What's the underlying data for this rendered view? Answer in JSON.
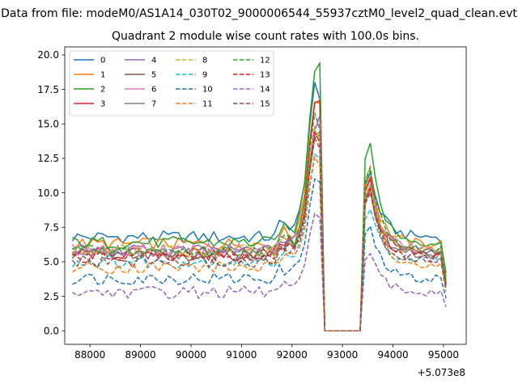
{
  "suptitle": "Data from file: modeM0/AS1A14_030T02_9000006544_55937cztM0_level2_quad_clean.evt",
  "chart_data": {
    "type": "line",
    "title": "Quadrant 2 module wise count rates with 100.0s bins.",
    "xlabel": "",
    "ylabel": "",
    "x_offset_text": "+5.073e8",
    "xlim": [
      87500,
      95450
    ],
    "ylim": [
      -0.98,
      20.58
    ],
    "xticks": [
      88000,
      89000,
      90000,
      91000,
      92000,
      93000,
      94000,
      95000
    ],
    "yticks": [
      0.0,
      2.5,
      5.0,
      7.5,
      10.0,
      12.5,
      15.0,
      17.5,
      20.0
    ],
    "xtick_labels": [
      "88000",
      "89000",
      "90000",
      "91000",
      "92000",
      "93000",
      "94000",
      "95000"
    ],
    "ytick_labels": [
      "0.0",
      "2.5",
      "5.0",
      "7.5",
      "10.0",
      "12.5",
      "15.0",
      "17.5",
      "20.0"
    ],
    "x_start": 87650,
    "x_step": 100,
    "grid": false,
    "legend": {
      "placement": "top-left",
      "columns": 4
    },
    "series": [
      {
        "name": "0",
        "color": "#1f77b4",
        "style": "solid",
        "base": 6.8,
        "peak": 18.0,
        "peak2": 16.8,
        "p2": 11.5
      },
      {
        "name": "1",
        "color": "#ff7f0e",
        "style": "solid",
        "base": 6.3,
        "peak": 16.6,
        "peak2": 16.5,
        "p2": 11.2
      },
      {
        "name": "2",
        "color": "#2ca02c",
        "style": "solid",
        "base": 6.4,
        "peak": 18.8,
        "peak2": 19.4,
        "p2": 13.6
      },
      {
        "name": "3",
        "color": "#d62728",
        "style": "solid",
        "base": 5.6,
        "peak": 16.5,
        "peak2": 16.7,
        "p2": 11.0
      },
      {
        "name": "4",
        "color": "#9467bd",
        "style": "solid",
        "base": 5.8,
        "peak": 14.5,
        "peak2": 15.6,
        "p2": 10.5
      },
      {
        "name": "5",
        "color": "#8c564b",
        "style": "solid",
        "base": 5.5,
        "peak": 14.0,
        "peak2": 14.2,
        "p2": 10.4
      },
      {
        "name": "6",
        "color": "#e377c2",
        "style": "solid",
        "base": 5.9,
        "peak": 14.8,
        "peak2": 15.0,
        "p2": 10.6
      },
      {
        "name": "7",
        "color": "#7f7f7f",
        "style": "solid",
        "base": 5.6,
        "peak": 14.2,
        "peak2": 14.4,
        "p2": 10.2
      },
      {
        "name": "8",
        "color": "#bcbd22",
        "style": "dashed",
        "base": 5.8,
        "peak": 14.6,
        "peak2": 13.8,
        "p2": 10.5
      },
      {
        "name": "9",
        "color": "#17becf",
        "style": "dashed",
        "base": 5.0,
        "peak": 12.8,
        "peak2": 12.5,
        "p2": 8.8
      },
      {
        "name": "10",
        "color": "#1f77b4",
        "style": "dashed",
        "base": 3.8,
        "peak": 11.0,
        "peak2": 10.8,
        "p2": 7.6
      },
      {
        "name": "11",
        "color": "#ff7f0e",
        "style": "dashed",
        "base": 4.6,
        "peak": 12.6,
        "peak2": 12.0,
        "p2": 11.9
      },
      {
        "name": "12",
        "color": "#2ca02c",
        "style": "dashed",
        "base": 5.8,
        "peak": 15.8,
        "peak2": 14.6,
        "p2": 11.8
      },
      {
        "name": "13",
        "color": "#d62728",
        "style": "dashed",
        "base": 5.3,
        "peak": 14.5,
        "peak2": 13.6,
        "p2": 10.3
      },
      {
        "name": "14",
        "color": "#9467bd",
        "style": "dashed",
        "base": 2.8,
        "peak": 8.5,
        "peak2": 8.2,
        "p2": 5.6
      },
      {
        "name": "15",
        "color": "#8c564b",
        "style": "dashed",
        "base": 5.0,
        "peak": 14.0,
        "peak2": 13.2,
        "p2": 10.0
      }
    ]
  }
}
